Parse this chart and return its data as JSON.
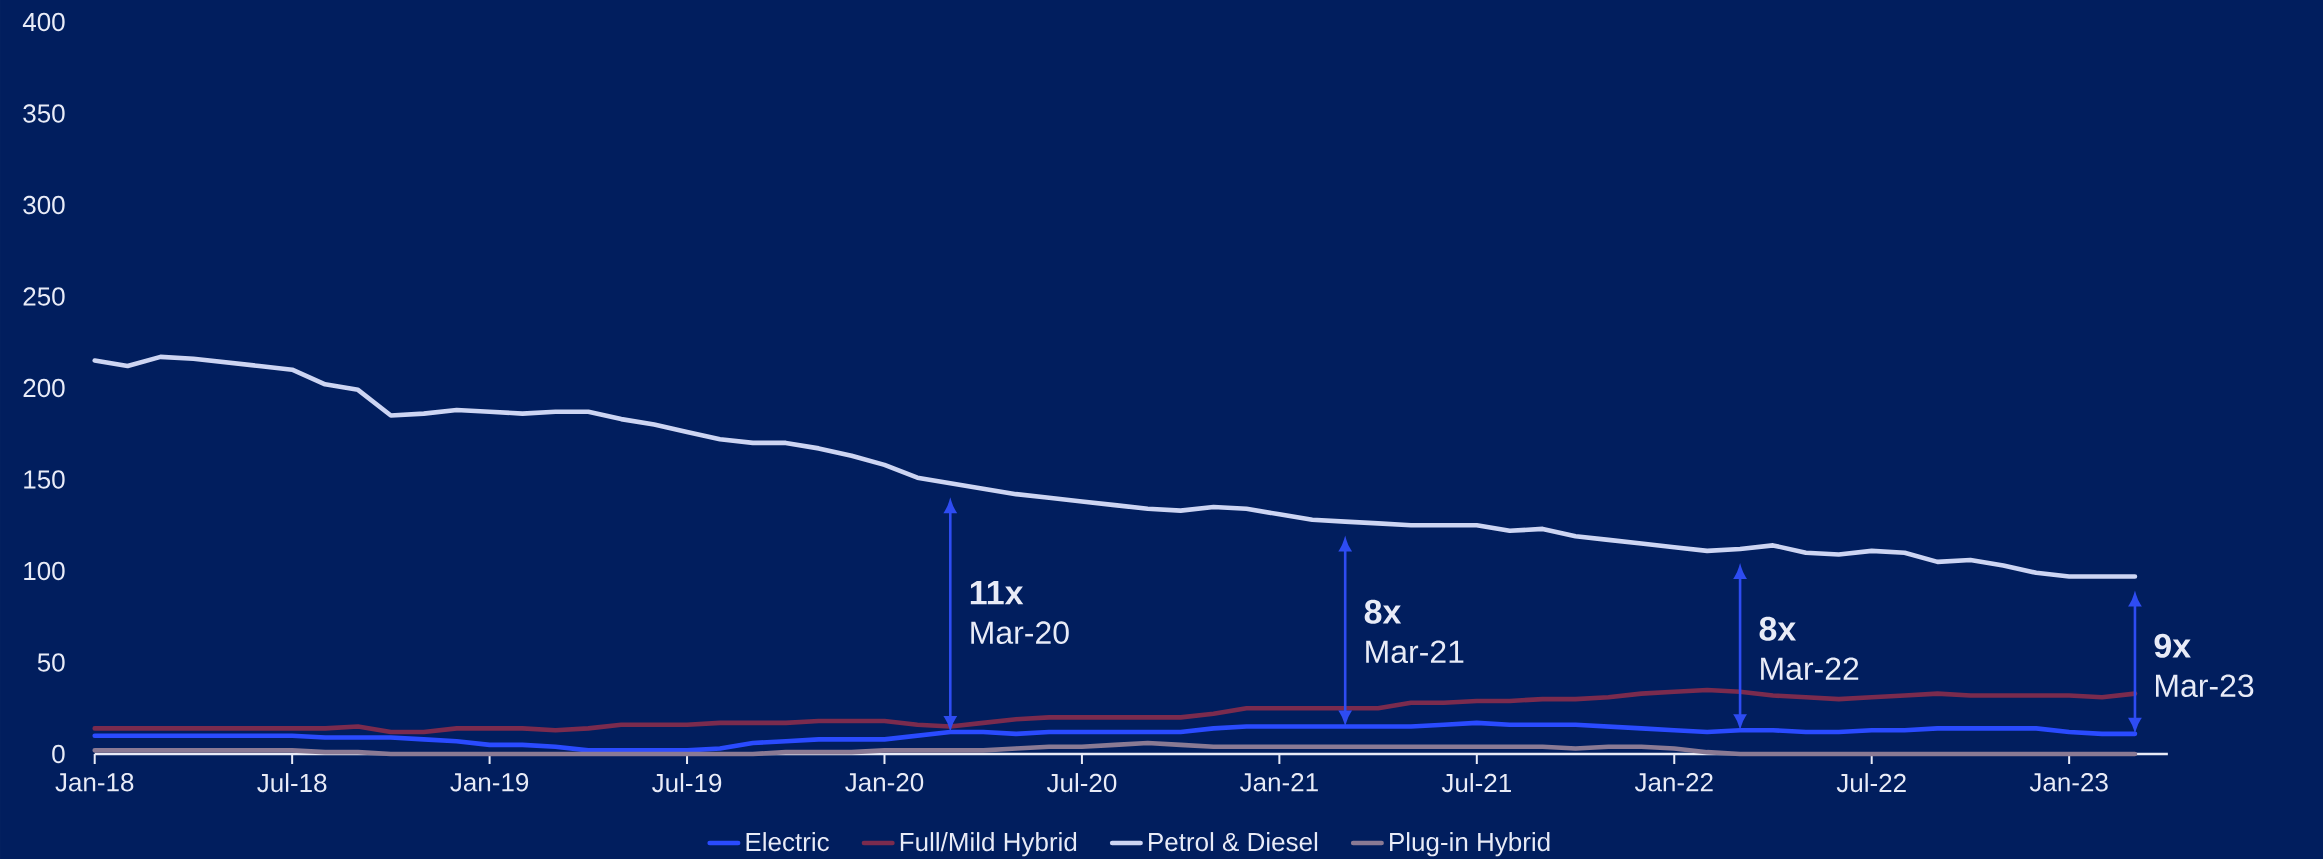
{
  "chart_data": {
    "type": "line",
    "x": [
      "2018-01",
      "2018-02",
      "2018-03",
      "2018-04",
      "2018-05",
      "2018-06",
      "2018-07",
      "2018-08",
      "2018-09",
      "2018-10",
      "2018-11",
      "2018-12",
      "2019-01",
      "2019-02",
      "2019-03",
      "2019-04",
      "2019-05",
      "2019-06",
      "2019-07",
      "2019-08",
      "2019-09",
      "2019-10",
      "2019-11",
      "2019-12",
      "2020-01",
      "2020-02",
      "2020-03",
      "2020-04",
      "2020-05",
      "2020-06",
      "2020-07",
      "2020-08",
      "2020-09",
      "2020-10",
      "2020-11",
      "2020-12",
      "2021-01",
      "2021-02",
      "2021-03",
      "2021-04",
      "2021-05",
      "2021-06",
      "2021-07",
      "2021-08",
      "2021-09",
      "2021-10",
      "2021-11",
      "2021-12",
      "2022-01",
      "2022-02",
      "2022-03",
      "2022-04",
      "2022-05",
      "2022-06",
      "2022-07",
      "2022-08",
      "2022-09",
      "2022-10",
      "2022-11",
      "2022-12",
      "2023-01",
      "2023-02",
      "2023-03"
    ],
    "series": [
      {
        "name": "Electric",
        "color": "#2a4bff",
        "values": [
          10,
          10,
          10,
          10,
          10,
          10,
          10,
          9,
          9,
          9,
          8,
          7,
          5,
          5,
          4,
          2,
          2,
          2,
          2,
          3,
          6,
          7,
          8,
          8,
          8,
          10,
          12,
          12,
          11,
          12,
          12,
          12,
          12,
          12,
          14,
          15,
          15,
          15,
          15,
          15,
          15,
          16,
          17,
          16,
          16,
          16,
          15,
          14,
          13,
          12,
          13,
          13,
          12,
          12,
          13,
          13,
          14,
          14,
          14,
          14,
          12,
          11,
          11
        ]
      },
      {
        "name": "Full/Mild Hybrid",
        "color": "#7a2b4e",
        "values": [
          14,
          14,
          14,
          14,
          14,
          14,
          14,
          14,
          15,
          12,
          12,
          14,
          14,
          14,
          13,
          14,
          16,
          16,
          16,
          17,
          17,
          17,
          18,
          18,
          18,
          16,
          15,
          17,
          19,
          20,
          20,
          20,
          20,
          20,
          22,
          25,
          25,
          25,
          25,
          25,
          28,
          28,
          29,
          29,
          30,
          30,
          31,
          33,
          34,
          35,
          34,
          32,
          31,
          30,
          31,
          32,
          33,
          32,
          32,
          32,
          32,
          31,
          33
        ]
      },
      {
        "name": "Petrol & Diesel",
        "color": "#cdd5f3",
        "values": [
          215,
          212,
          217,
          216,
          214,
          212,
          210,
          202,
          199,
          185,
          186,
          188,
          187,
          186,
          187,
          187,
          183,
          180,
          176,
          172,
          170,
          170,
          167,
          163,
          158,
          151,
          148,
          145,
          142,
          140,
          138,
          136,
          134,
          133,
          135,
          134,
          131,
          128,
          127,
          126,
          125,
          125,
          125,
          122,
          123,
          119,
          117,
          115,
          113,
          111,
          112,
          114,
          110,
          109,
          111,
          110,
          105,
          106,
          103,
          99,
          97,
          97,
          97
        ]
      },
      {
        "name": "Plug-in Hybrid",
        "color": "#8a7a94",
        "values": [
          2,
          2,
          2,
          2,
          2,
          2,
          2,
          1,
          1,
          0,
          0,
          0,
          0,
          0,
          0,
          0,
          0,
          0,
          0,
          0,
          0,
          1,
          1,
          1,
          2,
          2,
          2,
          2,
          3,
          4,
          4,
          5,
          6,
          5,
          4,
          4,
          4,
          4,
          4,
          4,
          4,
          4,
          4,
          4,
          4,
          3,
          4,
          4,
          3,
          1,
          0,
          0,
          0,
          0,
          0,
          0,
          0,
          0,
          0,
          0,
          0,
          0,
          0
        ]
      }
    ],
    "xlim": [
      "2018-01",
      "2023-04"
    ],
    "xticks": [
      {
        "value": "2018-01",
        "label": "Jan-18"
      },
      {
        "value": "2018-07",
        "label": "Jul-18"
      },
      {
        "value": "2019-01",
        "label": "Jan-19"
      },
      {
        "value": "2019-07",
        "label": "Jul-19"
      },
      {
        "value": "2020-01",
        "label": "Jan-20"
      },
      {
        "value": "2020-07",
        "label": "Jul-20"
      },
      {
        "value": "2021-01",
        "label": "Jan-21"
      },
      {
        "value": "2021-07",
        "label": "Jul-21"
      },
      {
        "value": "2022-01",
        "label": "Jan-22"
      },
      {
        "value": "2022-07",
        "label": "Jul-22"
      },
      {
        "value": "2023-01",
        "label": "Jan-23"
      }
    ],
    "ylim": [
      0,
      400
    ],
    "yticks": [
      0,
      50,
      100,
      150,
      200,
      250,
      300,
      350,
      400
    ],
    "legend": "bottom",
    "annotations": [
      {
        "text": "11x",
        "x": "2020-03",
        "y": 148
      },
      "Mar-20",
      {
        "text": "8x",
        "x": "2021-03",
        "y": 127
      },
      "Mar-21",
      {
        "text": "8x",
        "x": "2022-03",
        "y": 112
      },
      "Mar-22",
      {
        "text": "9x",
        "x": "2023-03",
        "y": 97
      },
      "Mar-23"
    ]
  }
}
